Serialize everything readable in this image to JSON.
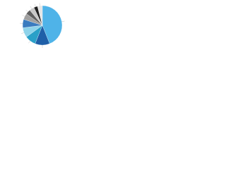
{
  "chart_data": {
    "type": "pie",
    "categories": [
      null,
      null,
      null,
      null,
      null,
      null,
      null,
      null,
      null,
      null
    ],
    "values": [
      44,
      12,
      9,
      8,
      7,
      5,
      4,
      4,
      3,
      4
    ],
    "colors": [
      "#4fb3e8",
      "#1f5fa8",
      "#2aa0c8",
      "#8fd3ea",
      "#3a7bbf",
      "#a0a0a0",
      "#606060",
      "#c8c8c8",
      "#202020",
      "#e6e6e6"
    ]
  }
}
